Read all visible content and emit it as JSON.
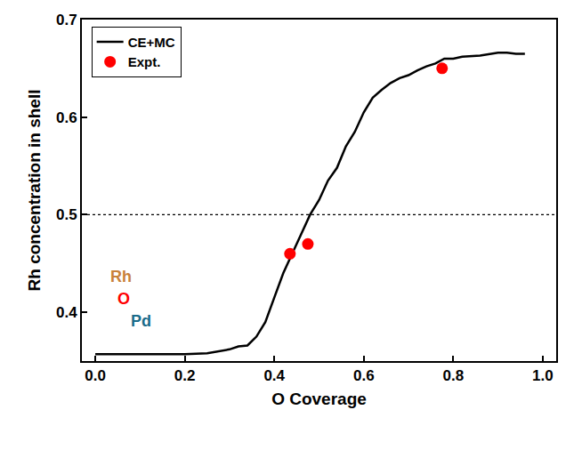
{
  "chart_data": {
    "type": "line",
    "x_label": "O Coverage",
    "y_label": "Rh concentration in shell",
    "xlim": [
      -0.03,
      1.03
    ],
    "ylim": [
      0.35,
      0.7
    ],
    "xticks": [
      {
        "value": 0,
        "label": "0.0"
      },
      0.2,
      0.4,
      0.6,
      0.8,
      {
        "value": 1,
        "label": "1.0"
      }
    ],
    "yticks": [
      0.4,
      0.5,
      0.6,
      0.7
    ],
    "grid": false,
    "legend": "top left",
    "hline": 0.5,
    "series": [
      {
        "name": "CE+MC",
        "type": "line",
        "color": "#000000",
        "line_style": "solid",
        "x": [
          0.0,
          0.1,
          0.2,
          0.25,
          0.28,
          0.3,
          0.32,
          0.34,
          0.36,
          0.38,
          0.4,
          0.42,
          0.44,
          0.46,
          0.48,
          0.5,
          0.52,
          0.54,
          0.56,
          0.58,
          0.6,
          0.62,
          0.64,
          0.66,
          0.68,
          0.7,
          0.72,
          0.74,
          0.76,
          0.78,
          0.8,
          0.82,
          0.86,
          0.9,
          0.92,
          0.94,
          0.96
        ],
        "values": [
          0.357,
          0.357,
          0.357,
          0.358,
          0.36,
          0.362,
          0.365,
          0.366,
          0.375,
          0.39,
          0.415,
          0.44,
          0.46,
          0.48,
          0.5,
          0.515,
          0.535,
          0.548,
          0.57,
          0.585,
          0.605,
          0.62,
          0.628,
          0.635,
          0.64,
          0.643,
          0.648,
          0.652,
          0.655,
          0.66,
          0.66,
          0.662,
          0.663,
          0.666,
          0.666,
          0.665,
          0.665
        ]
      },
      {
        "name": "Expt.",
        "type": "scatter",
        "color": "#ff0000",
        "marker": "circle",
        "x": [
          0.435,
          0.475,
          0.775
        ],
        "values": [
          0.46,
          0.47,
          0.65
        ]
      }
    ],
    "annotations": [
      {
        "text": "Rh",
        "x": 0.03,
        "y": 0.437,
        "color": "#c8813a"
      },
      {
        "text": "O",
        "x": 0.045,
        "y": 0.414,
        "color": "#ff0000"
      },
      {
        "text": "Pd",
        "x": 0.075,
        "y": 0.391,
        "color": "#1a6b8a"
      }
    ]
  }
}
